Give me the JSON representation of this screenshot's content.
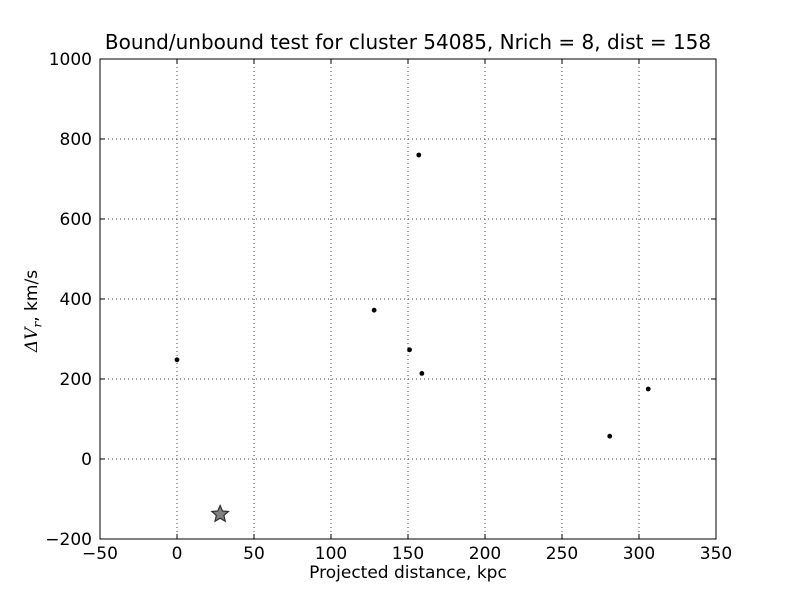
{
  "chart_data": {
    "type": "scatter",
    "title": "Bound/unbound test for cluster 54085, Nrich = 8, dist = 158",
    "xlabel": "Projected distance, kpc",
    "ylabel": "ΔV_r, km/s",
    "ylabel_parts": {
      "prefix": "ΔV",
      "sub": "r",
      "suffix": ", km/s"
    },
    "xlim": [
      -50,
      350
    ],
    "ylim": [
      -200,
      1000
    ],
    "xticks": [
      -50,
      0,
      50,
      100,
      150,
      200,
      250,
      300,
      350
    ],
    "yticks": [
      -200,
      0,
      200,
      400,
      600,
      800,
      1000
    ],
    "grid": {
      "style": "dotted",
      "color": "#444444"
    },
    "legend_position": "none",
    "axes_background": "#ffffff",
    "axis_color": "#000000",
    "series": [
      {
        "name": "galaxies",
        "marker": "dot",
        "color": "#000000",
        "points": [
          [
            0,
            248
          ],
          [
            128,
            372
          ],
          [
            151,
            273
          ],
          [
            157,
            760
          ],
          [
            159,
            214
          ],
          [
            281,
            57
          ],
          [
            306,
            175
          ]
        ]
      },
      {
        "name": "cluster-center",
        "marker": "star",
        "color": "#808080",
        "edge_color": "#2e2e2e",
        "points": [
          [
            28,
            -138
          ]
        ]
      }
    ]
  }
}
